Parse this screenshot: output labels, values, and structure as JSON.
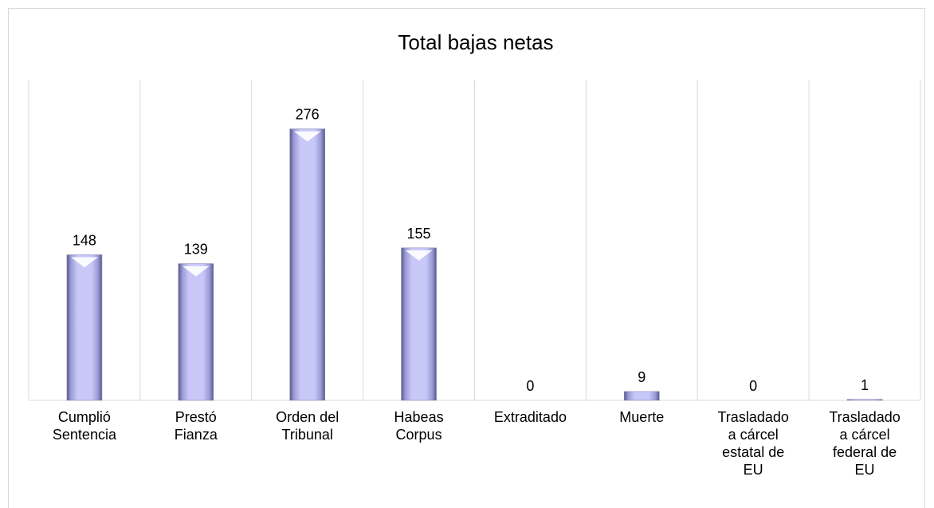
{
  "chart_data": {
    "type": "bar",
    "title": "Total bajas netas",
    "categories": [
      "Cumplió Sentencia",
      "Prestó Fianza",
      "Orden del Tribunal",
      "Habeas Corpus",
      "Extraditado",
      "Muerte",
      "Trasladado a cárcel estatal de EU",
      "Trasladado a cárcel federal de EU"
    ],
    "values": [
      148,
      139,
      276,
      155,
      0,
      9,
      0,
      1
    ],
    "color": "#b4b4f0",
    "ylim": [
      0,
      300
    ],
    "grid": true
  }
}
